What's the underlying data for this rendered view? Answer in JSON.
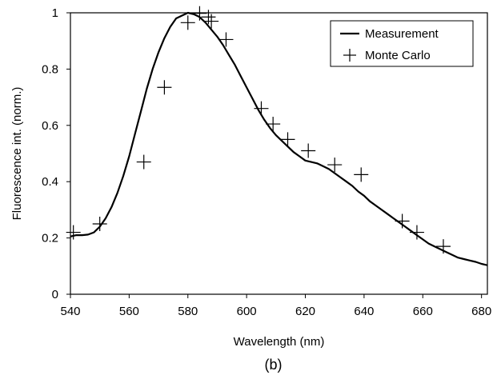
{
  "chart_data": {
    "type": "line",
    "xlabel": "Wavelength (nm)",
    "ylabel": "Fluorescence int. (norm.)",
    "caption": "(b)",
    "xlim": [
      540,
      682
    ],
    "ylim": [
      0,
      1
    ],
    "x_ticks": [
      540,
      560,
      580,
      600,
      620,
      640,
      660,
      680
    ],
    "y_ticks": [
      0,
      0.2,
      0.4,
      0.6,
      0.8,
      1
    ],
    "y_tick_labels": [
      "0",
      "0.2",
      "0.4",
      "0.6",
      "0.8",
      "1"
    ],
    "grid": false,
    "legend_position": "top-right",
    "series": [
      {
        "name": "Measurement",
        "style": "line",
        "color": "#000000",
        "points": [
          [
            540,
            0.205
          ],
          [
            542,
            0.21
          ],
          [
            544,
            0.21
          ],
          [
            546,
            0.212
          ],
          [
            548,
            0.22
          ],
          [
            550,
            0.24
          ],
          [
            552,
            0.27
          ],
          [
            554,
            0.31
          ],
          [
            556,
            0.36
          ],
          [
            558,
            0.42
          ],
          [
            560,
            0.49
          ],
          [
            562,
            0.57
          ],
          [
            564,
            0.65
          ],
          [
            566,
            0.73
          ],
          [
            568,
            0.8
          ],
          [
            570,
            0.86
          ],
          [
            572,
            0.91
          ],
          [
            574,
            0.95
          ],
          [
            576,
            0.98
          ],
          [
            578,
            0.99
          ],
          [
            580,
            1.0
          ],
          [
            582,
            0.995
          ],
          [
            584,
            0.985
          ],
          [
            586,
            0.965
          ],
          [
            588,
            0.94
          ],
          [
            590,
            0.915
          ],
          [
            592,
            0.885
          ],
          [
            594,
            0.85
          ],
          [
            596,
            0.815
          ],
          [
            598,
            0.775
          ],
          [
            600,
            0.735
          ],
          [
            602,
            0.695
          ],
          [
            604,
            0.655
          ],
          [
            606,
            0.62
          ],
          [
            608,
            0.59
          ],
          [
            610,
            0.565
          ],
          [
            612,
            0.545
          ],
          [
            614,
            0.525
          ],
          [
            616,
            0.505
          ],
          [
            618,
            0.49
          ],
          [
            620,
            0.475
          ],
          [
            622,
            0.47
          ],
          [
            624,
            0.465
          ],
          [
            626,
            0.455
          ],
          [
            628,
            0.445
          ],
          [
            630,
            0.43
          ],
          [
            632,
            0.415
          ],
          [
            634,
            0.4
          ],
          [
            636,
            0.385
          ],
          [
            638,
            0.365
          ],
          [
            640,
            0.35
          ],
          [
            642,
            0.33
          ],
          [
            644,
            0.315
          ],
          [
            646,
            0.3
          ],
          [
            648,
            0.285
          ],
          [
            650,
            0.27
          ],
          [
            652,
            0.255
          ],
          [
            654,
            0.24
          ],
          [
            656,
            0.225
          ],
          [
            658,
            0.21
          ],
          [
            660,
            0.195
          ],
          [
            662,
            0.18
          ],
          [
            664,
            0.17
          ],
          [
            666,
            0.16
          ],
          [
            668,
            0.15
          ],
          [
            670,
            0.14
          ],
          [
            672,
            0.13
          ],
          [
            674,
            0.125
          ],
          [
            676,
            0.12
          ],
          [
            678,
            0.115
          ],
          [
            680,
            0.108
          ],
          [
            682,
            0.103
          ]
        ]
      },
      {
        "name": "Monte Carlo",
        "style": "marker-plus",
        "color": "#000000",
        "points": [
          [
            541,
            0.22
          ],
          [
            550,
            0.25
          ],
          [
            565,
            0.47
          ],
          [
            572,
            0.735
          ],
          [
            580,
            0.965
          ],
          [
            584,
            0.998
          ],
          [
            587,
            0.985
          ],
          [
            588,
            0.97
          ],
          [
            593,
            0.905
          ],
          [
            605,
            0.66
          ],
          [
            609,
            0.605
          ],
          [
            614,
            0.55
          ],
          [
            621,
            0.51
          ],
          [
            630,
            0.46
          ],
          [
            639,
            0.425
          ],
          [
            653,
            0.26
          ],
          [
            658,
            0.22
          ],
          [
            667,
            0.17
          ]
        ]
      }
    ]
  }
}
